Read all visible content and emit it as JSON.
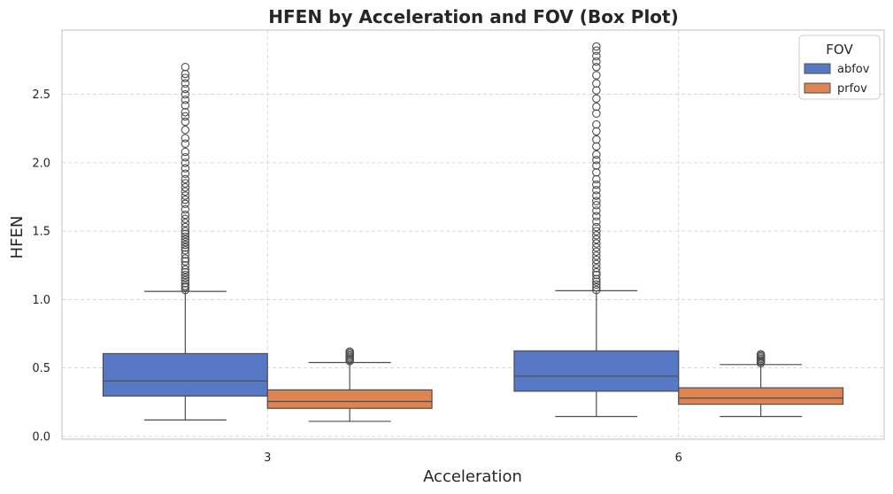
{
  "chart_data": {
    "type": "box",
    "title": "HFEN by Acceleration and FOV (Box Plot)",
    "xlabel": "Acceleration",
    "ylabel": "HFEN",
    "categories": [
      "3",
      "6"
    ],
    "ylim": [
      -0.02,
      2.97
    ],
    "yticks": [
      0.0,
      0.5,
      1.0,
      1.5,
      2.0,
      2.5
    ],
    "ytick_labels": [
      "0.0",
      "0.5",
      "1.0",
      "1.5",
      "2.0",
      "2.5"
    ],
    "grid": true,
    "legend": {
      "title": "FOV",
      "position": "top-right"
    },
    "series": [
      {
        "name": "abfov",
        "color": "#5778c4",
        "boxes": [
          {
            "category": "3",
            "whisker_low": 0.12,
            "q1": 0.295,
            "median": 0.405,
            "q3": 0.605,
            "whisker_high": 1.06,
            "outliers": [
              1.07,
              1.09,
              1.1,
              1.12,
              1.14,
              1.16,
              1.18,
              1.2,
              1.22,
              1.25,
              1.28,
              1.3,
              1.33,
              1.36,
              1.38,
              1.4,
              1.42,
              1.44,
              1.46,
              1.48,
              1.5,
              1.53,
              1.56,
              1.59,
              1.62,
              1.66,
              1.7,
              1.73,
              1.76,
              1.79,
              1.82,
              1.85,
              1.88,
              1.92,
              1.96,
              2.0,
              2.04,
              2.08,
              2.14,
              2.18,
              2.24,
              2.3,
              2.34,
              2.37,
              2.42,
              2.46,
              2.5,
              2.54,
              2.58,
              2.62,
              2.65,
              2.7
            ]
          },
          {
            "category": "6",
            "whisker_low": 0.145,
            "q1": 0.33,
            "median": 0.44,
            "q3": 0.625,
            "whisker_high": 1.065,
            "outliers": [
              1.07,
              1.09,
              1.11,
              1.13,
              1.15,
              1.18,
              1.2,
              1.23,
              1.26,
              1.29,
              1.32,
              1.35,
              1.38,
              1.41,
              1.44,
              1.47,
              1.5,
              1.53,
              1.57,
              1.61,
              1.65,
              1.69,
              1.72,
              1.76,
              1.8,
              1.84,
              1.88,
              1.93,
              1.98,
              2.02,
              2.06,
              2.12,
              2.17,
              2.23,
              2.28,
              2.36,
              2.41,
              2.47,
              2.53,
              2.58,
              2.64,
              2.7,
              2.74,
              2.78,
              2.82,
              2.85
            ]
          }
        ]
      },
      {
        "name": "prfov",
        "color": "#dd8452",
        "boxes": [
          {
            "category": "3",
            "whisker_low": 0.11,
            "q1": 0.205,
            "median": 0.255,
            "q3": 0.34,
            "whisker_high": 0.54,
            "outliers": [
              0.55,
              0.56,
              0.57,
              0.58,
              0.59,
              0.6,
              0.61,
              0.62
            ]
          },
          {
            "category": "6",
            "whisker_low": 0.145,
            "q1": 0.235,
            "median": 0.28,
            "q3": 0.355,
            "whisker_high": 0.525,
            "outliers": [
              0.535,
              0.545,
              0.555,
              0.565,
              0.575,
              0.585,
              0.595,
              0.6
            ]
          }
        ]
      }
    ]
  }
}
